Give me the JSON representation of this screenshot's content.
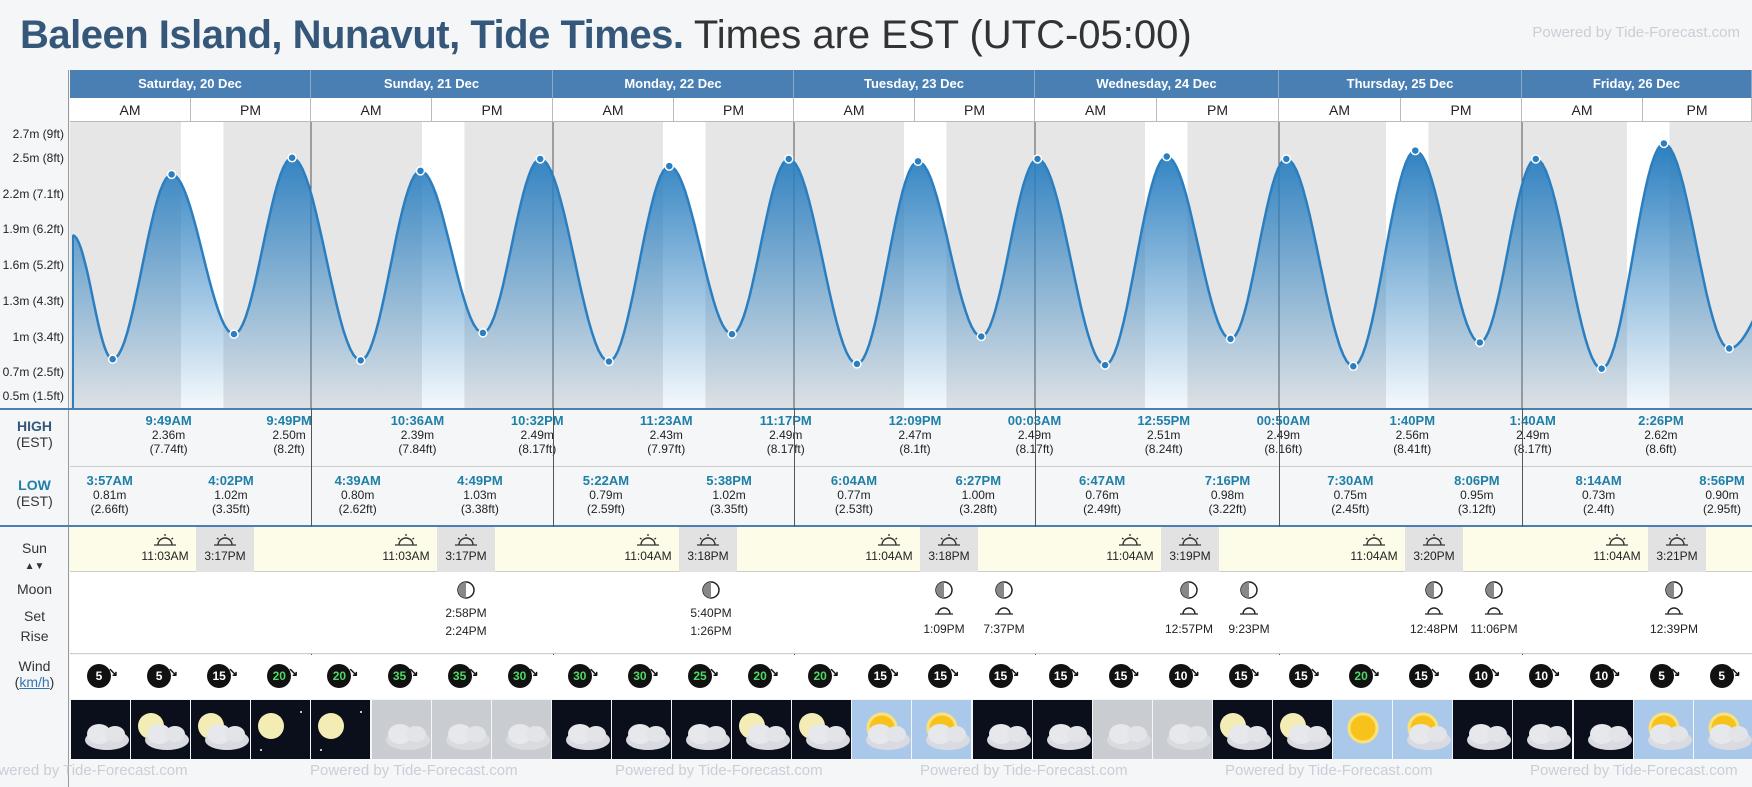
{
  "header": {
    "place": "Baleen Island, Nunavut, Tide Times.",
    "timezone": "Times are EST (UTC-05:00)",
    "powered": "Powered by Tide-Forecast.com"
  },
  "days": [
    {
      "label": "Saturday, 20 Dec"
    },
    {
      "label": "Sunday, 21 Dec"
    },
    {
      "label": "Monday, 22 Dec"
    },
    {
      "label": "Tuesday, 23 Dec"
    },
    {
      "label": "Wednesday, 24 Dec"
    },
    {
      "label": "Thursday, 25 Dec"
    },
    {
      "label": "Friday, 26 Dec"
    }
  ],
  "ampm": {
    "am": "AM",
    "pm": "PM"
  },
  "yaxis": [
    "2.7m (9ft)",
    "2.5m (8ft)",
    "2.2m (7.1ft)",
    "1.9m (6.2ft)",
    "1.6m (5.2ft)",
    "1.3m (4.3ft)",
    "1m (3.4ft)",
    "0.7m (2.5ft)",
    "0.5m (1.5ft)"
  ],
  "labels": {
    "high": "HIGH",
    "high_tz": "(EST)",
    "low": "LOW",
    "low_tz": "(EST)",
    "sun": "Sun",
    "moon": "Moon",
    "set": "Set",
    "rise": "Rise",
    "wind": "Wind",
    "wind_unit": "km/h"
  },
  "highs": [
    {
      "time": "9:49AM",
      "m": "2.36m",
      "ft": "(7.74ft)"
    },
    {
      "time": "9:49PM",
      "m": "2.50m",
      "ft": "(8.2ft)"
    },
    {
      "time": "10:36AM",
      "m": "2.39m",
      "ft": "(7.84ft)"
    },
    {
      "time": "10:32PM",
      "m": "2.49m",
      "ft": "(8.17ft)"
    },
    {
      "time": "11:23AM",
      "m": "2.43m",
      "ft": "(7.97ft)"
    },
    {
      "time": "11:17PM",
      "m": "2.49m",
      "ft": "(8.17ft)"
    },
    {
      "time": "12:09PM",
      "m": "2.47m",
      "ft": "(8.1ft)"
    },
    {
      "time": "00:03AM",
      "m": "2.49m",
      "ft": "(8.17ft)"
    },
    {
      "time": "12:55PM",
      "m": "2.51m",
      "ft": "(8.24ft)"
    },
    {
      "time": "00:50AM",
      "m": "2.49m",
      "ft": "(8.16ft)"
    },
    {
      "time": "1:40PM",
      "m": "2.56m",
      "ft": "(8.41ft)"
    },
    {
      "time": "1:40AM",
      "m": "2.49m",
      "ft": "(8.17ft)"
    },
    {
      "time": "2:26PM",
      "m": "2.62m",
      "ft": "(8.6ft)"
    }
  ],
  "lows": [
    {
      "time": "3:57AM",
      "m": "0.81m",
      "ft": "(2.66ft)"
    },
    {
      "time": "4:02PM",
      "m": "1.02m",
      "ft": "(3.35ft)"
    },
    {
      "time": "4:39AM",
      "m": "0.80m",
      "ft": "(2.62ft)"
    },
    {
      "time": "4:49PM",
      "m": "1.03m",
      "ft": "(3.38ft)"
    },
    {
      "time": "5:22AM",
      "m": "0.79m",
      "ft": "(2.59ft)"
    },
    {
      "time": "5:38PM",
      "m": "1.02m",
      "ft": "(3.35ft)"
    },
    {
      "time": "6:04AM",
      "m": "0.77m",
      "ft": "(2.53ft)"
    },
    {
      "time": "6:27PM",
      "m": "1.00m",
      "ft": "(3.28ft)"
    },
    {
      "time": "6:47AM",
      "m": "0.76m",
      "ft": "(2.49ft)"
    },
    {
      "time": "7:16PM",
      "m": "0.98m",
      "ft": "(3.22ft)"
    },
    {
      "time": "7:30AM",
      "m": "0.75m",
      "ft": "(2.45ft)"
    },
    {
      "time": "8:06PM",
      "m": "0.95m",
      "ft": "(3.12ft)"
    },
    {
      "time": "8:14AM",
      "m": "0.73m",
      "ft": "(2.4ft)"
    },
    {
      "time": "8:56PM",
      "m": "0.90m",
      "ft": "(2.95ft)"
    }
  ],
  "sun": [
    {
      "rise": "11:03AM",
      "set": "3:17PM"
    },
    {
      "rise": "11:03AM",
      "set": "3:17PM"
    },
    {
      "rise": "11:04AM",
      "set": "3:18PM"
    },
    {
      "rise": "11:04AM",
      "set": "3:18PM"
    },
    {
      "rise": "11:04AM",
      "set": "3:19PM"
    },
    {
      "rise": "11:04AM",
      "set": "3:20PM"
    },
    {
      "rise": "11:04AM",
      "set": "3:21PM"
    }
  ],
  "moon": [
    {
      "set": "2:58PM",
      "rise": "2:24PM"
    },
    {
      "set": "5:40PM",
      "rise": "1:26PM"
    },
    {
      "set": "",
      "rise": "1:09PM"
    },
    {
      "set": "",
      "rise": "7:37PM"
    },
    {
      "set": "",
      "rise": "12:57PM"
    },
    {
      "set": "",
      "rise": "9:23PM"
    },
    {
      "set": "",
      "rise": "12:48PM"
    },
    {
      "set": "",
      "rise": "11:06PM"
    },
    {
      "set": "",
      "rise": "12:39PM"
    }
  ],
  "wind": [
    5,
    5,
    15,
    20,
    20,
    35,
    35,
    30,
    30,
    30,
    25,
    20,
    20,
    15,
    15,
    15,
    15,
    15,
    10,
    15,
    15,
    20,
    15,
    10,
    10,
    10,
    5,
    5
  ],
  "colors": {
    "accent": "#4a7fb3",
    "title": "#35587a",
    "tide": "#2b7fc0",
    "time": "#1f7fa6"
  },
  "chart_data": {
    "type": "area",
    "title": "",
    "ylabel": "",
    "ylim": [
      0.4,
      2.8
    ],
    "series": [
      {
        "x": [
          "3:57AM",
          "9:49AM",
          "4:02PM",
          "9:49PM",
          "4:39AM",
          "10:36AM",
          "4:49PM",
          "10:32PM",
          "5:22AM",
          "11:23AM",
          "5:38PM",
          "11:17PM",
          "6:04AM",
          "12:09PM",
          "6:27PM",
          "00:03AM",
          "6:47AM",
          "12:55PM",
          "7:16PM",
          "00:50AM",
          "7:30AM",
          "1:40PM",
          "8:06PM",
          "1:40AM",
          "8:14AM",
          "2:26PM",
          "8:56PM"
        ],
        "values": [
          0.81,
          2.36,
          1.02,
          2.5,
          0.8,
          2.39,
          1.03,
          2.49,
          0.79,
          2.43,
          1.02,
          2.49,
          0.77,
          2.47,
          1.0,
          2.49,
          0.76,
          2.51,
          0.98,
          2.49,
          0.75,
          2.56,
          0.95,
          2.49,
          0.73,
          2.62,
          0.9
        ]
      }
    ]
  }
}
